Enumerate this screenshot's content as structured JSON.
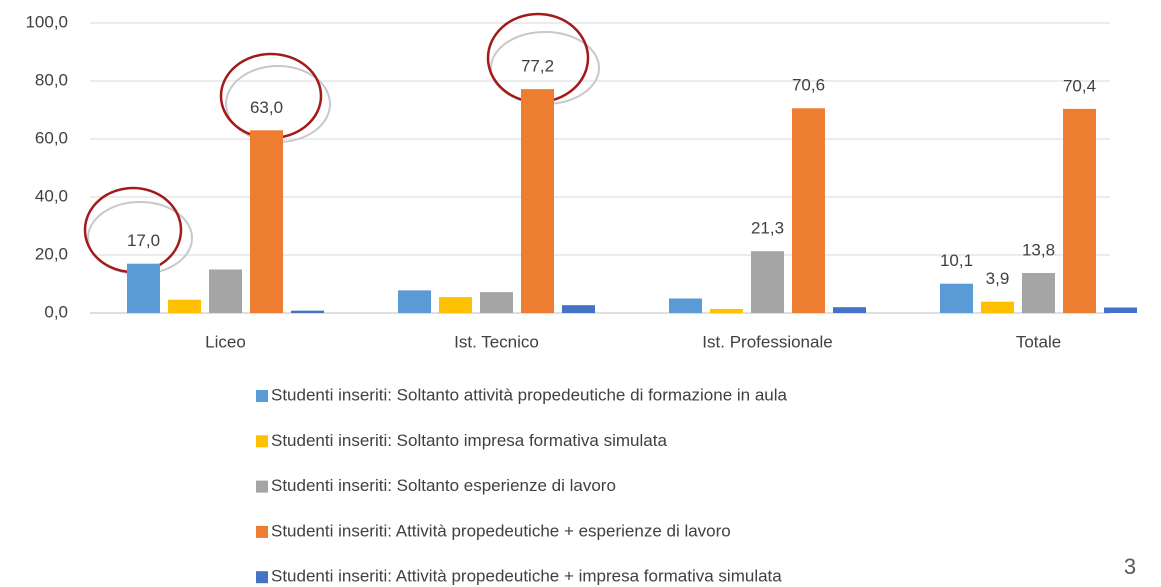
{
  "chart_data": {
    "type": "bar",
    "categories": [
      "Liceo",
      "Ist. Tecnico",
      "Ist. Professionale",
      "Totale"
    ],
    "series": [
      {
        "name": "Studenti inseriti: Soltanto attività propedeutiche di formazione in aula",
        "color": "#5b9bd5",
        "values": [
          17.0,
          7.8,
          5.0,
          10.1
        ],
        "value_labels": [
          "17,0",
          null,
          null,
          "10,1"
        ]
      },
      {
        "name": "Studenti inseriti: Soltanto impresa formativa simulata",
        "color": "#ffc000",
        "values": [
          4.6,
          5.5,
          1.4,
          3.9
        ],
        "value_labels": [
          null,
          null,
          null,
          "3,9"
        ]
      },
      {
        "name": "Studenti inseriti: Soltanto esperienze di lavoro",
        "color": "#a5a5a5",
        "values": [
          15.0,
          7.2,
          21.3,
          13.8
        ],
        "value_labels": [
          null,
          null,
          "21,3",
          "13,8"
        ]
      },
      {
        "name": "Studenti inseriti: Attività propedeutiche + esperienze di lavoro",
        "color": "#ed7d31",
        "values": [
          63.0,
          77.2,
          70.6,
          70.4
        ],
        "value_labels": [
          "63,0",
          "77,2",
          "70,6",
          "70,4"
        ]
      },
      {
        "name": "Studenti inseriti: Attività propedeutiche + impresa formativa simulata",
        "color": "#4472c4",
        "values": [
          0.8,
          2.7,
          2.0,
          1.9
        ],
        "value_labels": [
          null,
          null,
          null,
          null
        ]
      }
    ],
    "ylim": [
      0,
      100
    ],
    "yticks": [
      {
        "value": 0,
        "label": "0,0"
      },
      {
        "value": 20,
        "label": "20,0"
      },
      {
        "value": 40,
        "label": "40,0"
      },
      {
        "value": 60,
        "label": "60,0"
      },
      {
        "value": 80,
        "label": "80,0"
      },
      {
        "value": 100,
        "label": "100,0"
      }
    ],
    "grid": true
  },
  "page_number": "3"
}
